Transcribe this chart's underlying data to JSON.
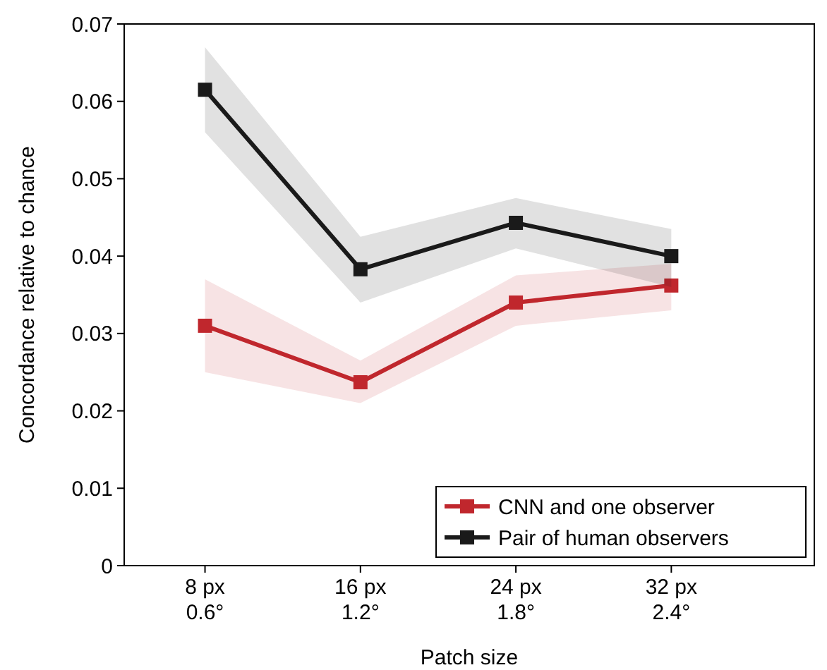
{
  "chart_data": {
    "type": "line",
    "xlabel": "Patch size",
    "ylabel": "Concordance relative to chance",
    "categories": [
      "8 px\n0.6°",
      "16 px\n1.2°",
      "24 px\n1.8°",
      "32 px\n2.4°"
    ],
    "series": [
      {
        "name": "CNN and one observer",
        "color": "#c0272d",
        "values": [
          0.031,
          0.0237,
          0.034,
          0.0362
        ],
        "lower": [
          0.025,
          0.021,
          0.031,
          0.033
        ],
        "upper": [
          0.037,
          0.0265,
          0.0375,
          0.039
        ]
      },
      {
        "name": "Pair of human observers",
        "color": "#1a1a1a",
        "values": [
          0.0615,
          0.0383,
          0.0443,
          0.04
        ],
        "lower": [
          0.056,
          0.034,
          0.041,
          0.036
        ],
        "upper": [
          0.067,
          0.0425,
          0.0475,
          0.0435
        ]
      }
    ],
    "ylim": [
      0,
      0.07
    ],
    "yticks": [
      0,
      0.01,
      0.02,
      0.03,
      0.04,
      0.05,
      0.06,
      0.07
    ],
    "marker": "square",
    "line_style": "solid",
    "legend": "bottom right",
    "grid": false
  }
}
